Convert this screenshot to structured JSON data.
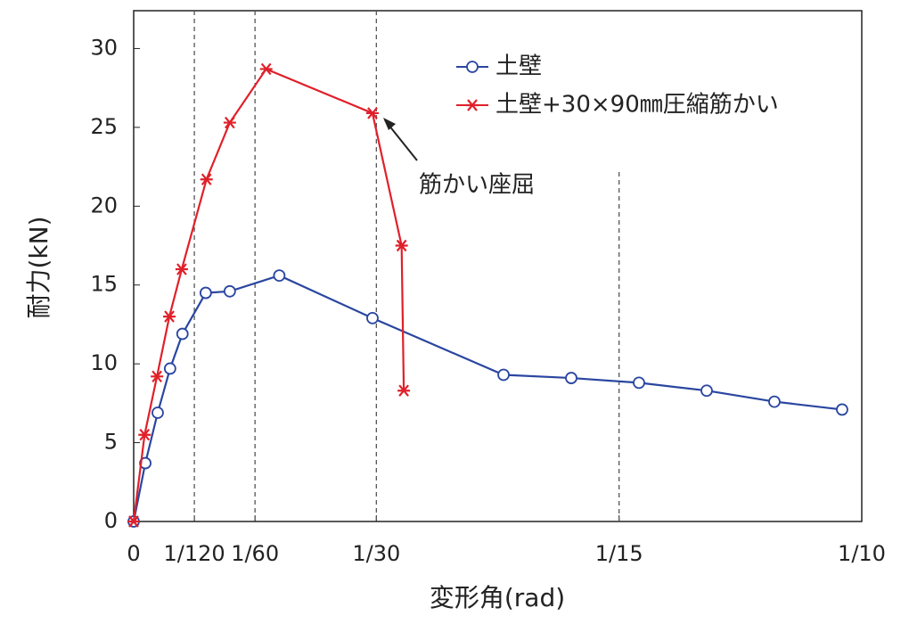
{
  "chart_data": {
    "type": "line",
    "xlabel": "変形角(rad)",
    "ylabel": "耐力(kN)",
    "xlim": [
      0,
      0.1
    ],
    "ylim": [
      0,
      32.4
    ],
    "xticks": [
      0,
      {
        "value": 0.008333,
        "label": "1/120"
      },
      {
        "value": 0.016667,
        "label": "1/60"
      },
      {
        "value": 0.033333,
        "label": "1/30"
      },
      {
        "value": 0.066667,
        "label": "1/15"
      },
      {
        "value": 0.1,
        "label": "1/10"
      }
    ],
    "yticks": [
      0,
      5,
      10,
      15,
      20,
      25,
      30
    ],
    "annotation": "筋かい座屈",
    "legend": "top-right",
    "series": [
      {
        "name": "土壁",
        "color": "#2a46a0",
        "marker": "circle",
        "x": [
          0,
          0.0016,
          0.0033,
          0.005,
          0.0067,
          0.0099,
          0.0132,
          0.02,
          0.0328,
          0.0508,
          0.0601,
          0.0694,
          0.0787,
          0.088,
          0.0973
        ],
        "values": [
          0,
          3.7,
          6.9,
          9.7,
          11.9,
          14.5,
          14.6,
          15.6,
          12.9,
          9.3,
          9.1,
          8.8,
          8.3,
          7.6,
          7.1
        ]
      },
      {
        "name": "土壁+30×90㎜圧縮筋かい",
        "color": "#e0202a",
        "marker": "star",
        "x": [
          0,
          0.0015,
          0.0032,
          0.0049,
          0.0066,
          0.01,
          0.0132,
          0.0182,
          0.0328,
          0.0368,
          0.0371
        ],
        "values": [
          0,
          5.5,
          9.2,
          13,
          16,
          21.7,
          25.3,
          28.7,
          25.9,
          17.5,
          8.3
        ]
      }
    ]
  }
}
